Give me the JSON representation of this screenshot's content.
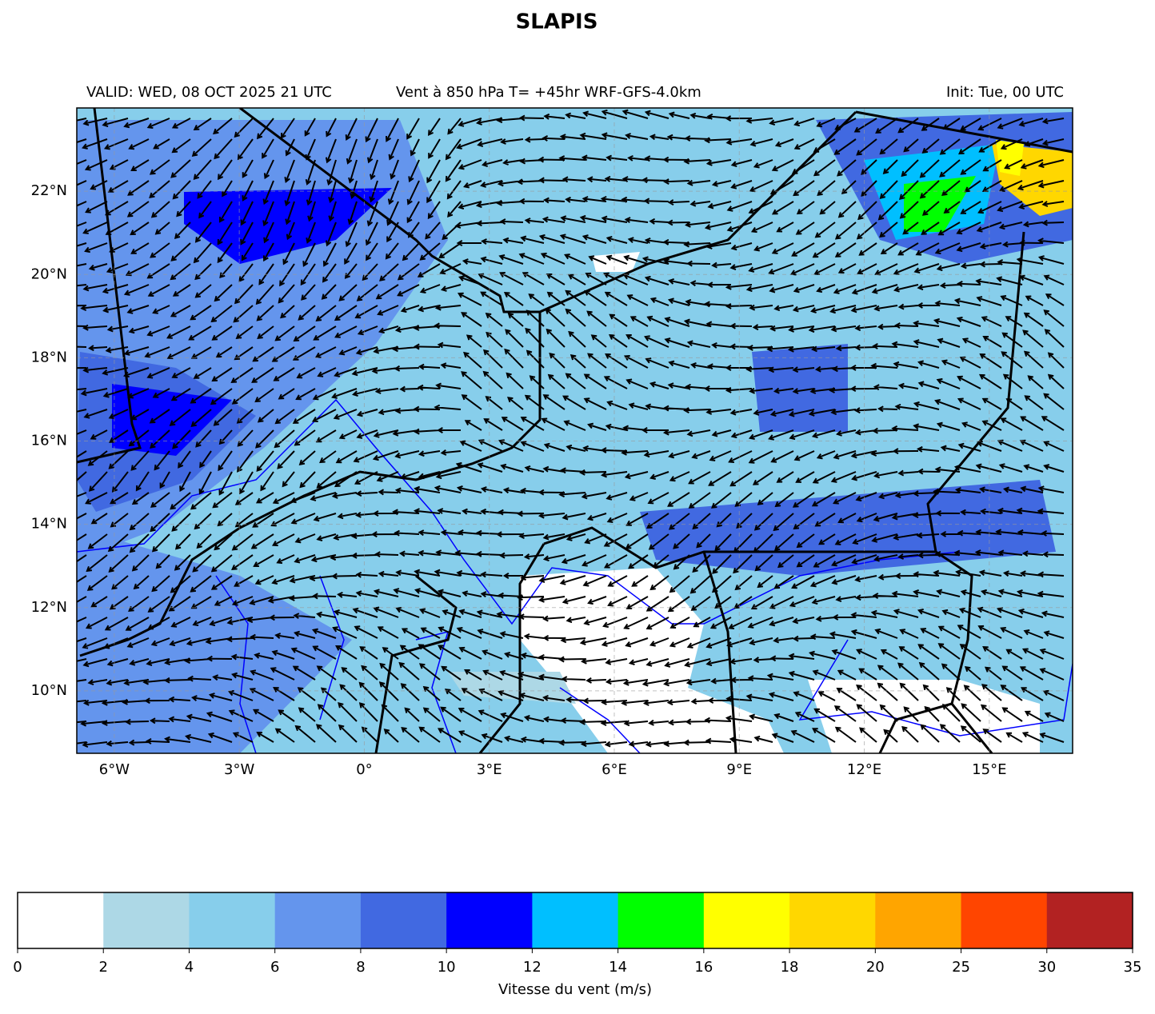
{
  "title": "SLAPIS",
  "header": {
    "valid": "VALID: WED, 08 OCT 2025 21 UTC",
    "field": "Vent à 850 hPa T= +45hr  WRF-GFS-4.0km",
    "init": "Init: Tue, 00 UTC"
  },
  "map": {
    "xlim": [
      -6.9,
      17
    ],
    "ylim": [
      8.5,
      24
    ],
    "xticks": [
      {
        "value": -6,
        "label": "6°W"
      },
      {
        "value": -3,
        "label": "3°W"
      },
      {
        "value": 0,
        "label": "0°"
      },
      {
        "value": 3,
        "label": "3°E"
      },
      {
        "value": 6,
        "label": "6°E"
      },
      {
        "value": 9,
        "label": "9°E"
      },
      {
        "value": 12,
        "label": "12°E"
      },
      {
        "value": 15,
        "label": "15°E"
      }
    ],
    "yticks": [
      {
        "value": 10,
        "label": "10°N"
      },
      {
        "value": 12,
        "label": "12°N"
      },
      {
        "value": 14,
        "label": "14°N"
      },
      {
        "value": 16,
        "label": "16°N"
      },
      {
        "value": 18,
        "label": "18°N"
      },
      {
        "value": 20,
        "label": "20°N"
      },
      {
        "value": 22,
        "label": "22°N"
      }
    ],
    "grid": true
  },
  "colorbar": {
    "label": "Vitesse du vent (m/s)",
    "bounds": [
      0,
      2,
      4,
      6,
      8,
      10,
      12,
      14,
      16,
      18,
      20,
      25,
      30,
      35
    ],
    "colors": [
      "#ffffff",
      "#add8e6",
      "#87ceeb",
      "#6495ed",
      "#4169e1",
      "#0000ff",
      "#00bfff",
      "#00ff00",
      "#ffff00",
      "#ffd700",
      "#ffa500",
      "#ff4500",
      "#b22222"
    ]
  }
}
